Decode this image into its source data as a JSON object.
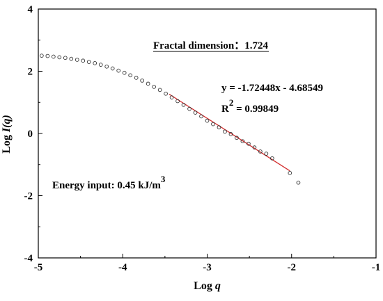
{
  "chart_data": {
    "type": "scatter",
    "xlabel": "Log q",
    "ylabel": "Log I(q)",
    "xlim": [
      -5,
      -1
    ],
    "ylim": [
      -4,
      4
    ],
    "xticks": [
      -5,
      -4,
      -3,
      -2,
      -1
    ],
    "yticks": [
      -4,
      -2,
      0,
      2,
      4
    ],
    "xtick_labels": [
      "-5",
      "-4",
      "-3",
      "-2",
      "-1"
    ],
    "ytick_labels": [
      "-4",
      "-2",
      "0",
      "2",
      "4"
    ],
    "grid": false,
    "series": [
      {
        "marker": "open-circle",
        "color": "#333333",
        "x": [
          -4.96,
          -4.89,
          -4.82,
          -4.75,
          -4.68,
          -4.61,
          -4.54,
          -4.47,
          -4.4,
          -4.33,
          -4.26,
          -4.19,
          -4.12,
          -4.05,
          -3.98,
          -3.91,
          -3.84,
          -3.77,
          -3.7,
          -3.63,
          -3.56,
          -3.49,
          -3.42,
          -3.35,
          -3.28,
          -3.21,
          -3.14,
          -3.07,
          -3.0,
          -2.93,
          -2.86,
          -2.79,
          -2.72,
          -2.65,
          -2.58,
          -2.51,
          -2.44,
          -2.37,
          -2.3,
          -2.23,
          -2.02,
          -1.92
        ],
        "y": [
          2.5,
          2.49,
          2.47,
          2.45,
          2.43,
          2.4,
          2.37,
          2.34,
          2.3,
          2.26,
          2.21,
          2.15,
          2.09,
          2.02,
          1.95,
          1.87,
          1.79,
          1.7,
          1.6,
          1.5,
          1.4,
          1.28,
          1.16,
          1.04,
          0.92,
          0.79,
          0.67,
          0.55,
          0.41,
          0.3,
          0.2,
          0.06,
          -0.02,
          -0.14,
          -0.25,
          -0.33,
          -0.45,
          -0.58,
          -0.65,
          -0.8,
          -1.27,
          -1.58
        ]
      }
    ],
    "fit_line": {
      "color": "#d32f2f",
      "x_range": [
        -3.45,
        -2.02
      ],
      "slope": -1.72448,
      "intercept": -4.68549
    },
    "annotations": {
      "fractal_dimension": "Fractal dimension：1.724",
      "equation": "y =  -1.72448x - 4.68549",
      "r_squared_base": "R",
      "r_squared_sup": "2",
      "r_squared_value": " = 0.99849",
      "energy_text": "Energy input: 0.45 kJ/m",
      "energy_sup": "3"
    }
  }
}
